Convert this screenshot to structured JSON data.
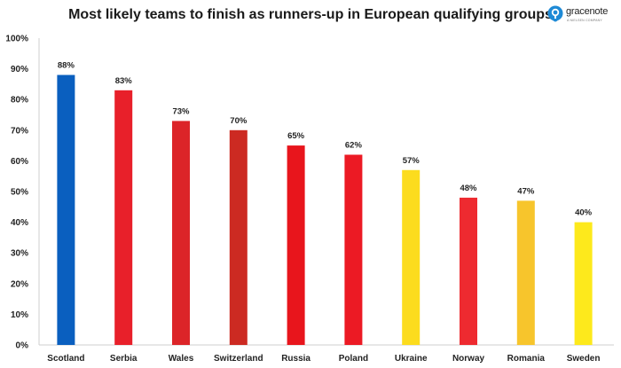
{
  "colors": {
    "blue": "#0a5fbf",
    "red": "#e8202a",
    "dark_red": "#c8261e",
    "yellow": "#fce019",
    "gold": "#f6c62a",
    "logo": "#1e8ad6"
  },
  "brand": {
    "name": "gracenote",
    "subtitle": "A NIELSEN COMPANY",
    "icon": "gracenote-logo-icon"
  },
  "chart_data": {
    "type": "bar",
    "title": "Most likely teams to finish as runners-up in European qualifying groups",
    "xlabel": "",
    "ylabel": "",
    "ylim": [
      0,
      100
    ],
    "yticks": [
      "0%",
      "10%",
      "20%",
      "30%",
      "40%",
      "50%",
      "60%",
      "70%",
      "80%",
      "90%",
      "100%"
    ],
    "categories": [
      "Scotland",
      "Serbia",
      "Wales",
      "Switzerland",
      "Russia",
      "Poland",
      "Ukraine",
      "Norway",
      "Romania",
      "Sweden"
    ],
    "values": [
      88,
      83,
      73,
      70,
      65,
      62,
      57,
      48,
      47,
      40
    ],
    "labels": [
      "88%",
      "83%",
      "73%",
      "70%",
      "65%",
      "62%",
      "57%",
      "48%",
      "47%",
      "40%"
    ],
    "bar_colors": [
      "#0a5fbf",
      "#e8202a",
      "#dc2428",
      "#cc2a22",
      "#e8151c",
      "#ec1a24",
      "#fcdc1e",
      "#ee2a30",
      "#f7c52c",
      "#fde91c"
    ],
    "grid": false
  }
}
